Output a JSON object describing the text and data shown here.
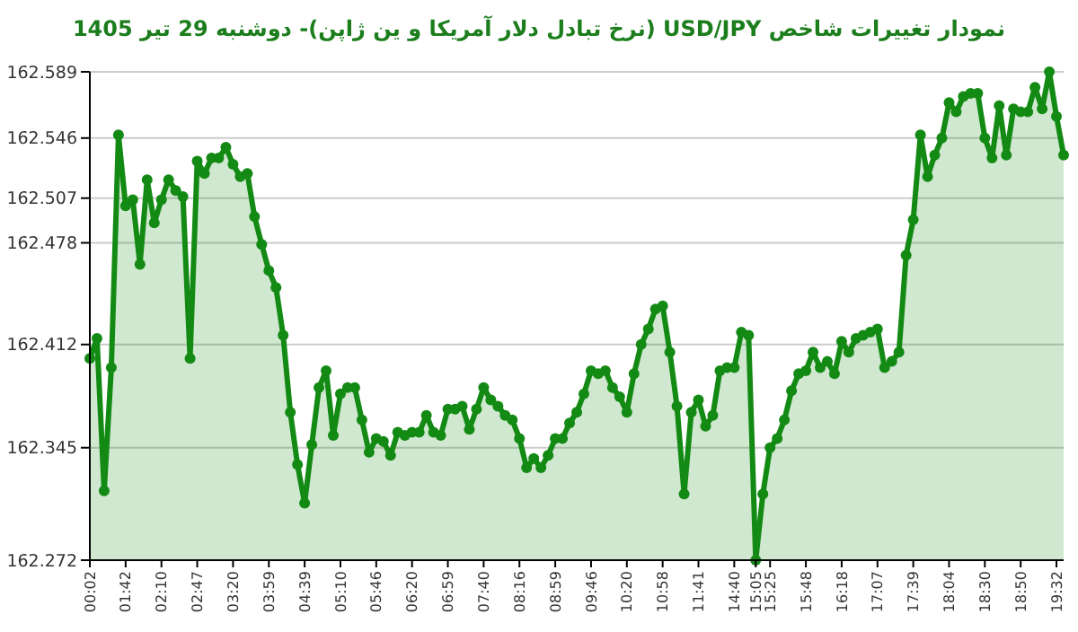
{
  "chart_data": {
    "type": "area",
    "title": "نمودار تغییرات شاخص USD/JPY (نرخ تبادل دلار آمریکا و ین ژاپن)-  دوشنبه  29 تیر 1405",
    "categories": [
      "00:02",
      null,
      null,
      null,
      null,
      "01:42",
      null,
      null,
      null,
      null,
      "02:10",
      null,
      null,
      null,
      null,
      "02:47",
      null,
      null,
      null,
      null,
      "03:20",
      null,
      null,
      null,
      null,
      "03:59",
      null,
      null,
      null,
      null,
      "04:39",
      null,
      null,
      null,
      null,
      "05:10",
      null,
      null,
      null,
      null,
      "05:46",
      null,
      null,
      null,
      null,
      "06:20",
      null,
      null,
      null,
      null,
      "06:59",
      null,
      null,
      null,
      null,
      "07:40",
      null,
      null,
      null,
      null,
      "08:16",
      null,
      null,
      null,
      null,
      "08:59",
      null,
      null,
      null,
      null,
      "09:46",
      null,
      null,
      null,
      null,
      "10:20",
      null,
      null,
      null,
      null,
      "10:58",
      null,
      null,
      null,
      null,
      "11:41",
      null,
      null,
      null,
      null,
      "14:40",
      null,
      null,
      "15:05",
      null,
      "15:25",
      null,
      null,
      null,
      null,
      "15:48",
      null,
      null,
      null,
      null,
      "16:18",
      null,
      null,
      null,
      null,
      "17:07",
      null,
      null,
      null,
      null,
      "17:39",
      null,
      null,
      null,
      null,
      "18:04",
      null,
      null,
      null,
      null,
      "18:30",
      null,
      null,
      null,
      null,
      "18:50",
      null,
      null,
      null,
      null,
      "19:32",
      null
    ],
    "series": [
      {
        "color": "#138a13",
        "values": [
          162.403,
          162.416,
          162.317,
          162.397,
          162.548,
          162.502,
          162.506,
          162.464,
          162.519,
          162.491,
          162.506,
          162.519,
          162.512,
          162.508,
          162.403,
          162.531,
          162.523,
          162.533,
          162.533,
          162.54,
          162.529,
          162.521,
          162.523,
          162.495,
          162.477,
          162.46,
          162.449,
          162.418,
          162.368,
          162.334,
          162.309,
          162.347,
          162.384,
          162.395,
          162.353,
          162.38,
          162.384,
          162.384,
          162.363,
          162.342,
          162.351,
          162.349,
          162.34,
          162.355,
          162.353,
          162.355,
          162.355,
          162.366,
          162.355,
          162.353,
          162.37,
          162.37,
          162.372,
          162.357,
          162.37,
          162.384,
          162.376,
          162.372,
          162.366,
          162.363,
          162.351,
          162.332,
          162.338,
          162.332,
          162.34,
          162.351,
          162.351,
          162.361,
          162.368,
          162.38,
          162.395,
          162.393,
          162.395,
          162.384,
          162.378,
          162.368,
          162.393,
          162.412,
          162.422,
          162.435,
          162.437,
          162.407,
          162.372,
          162.315,
          162.368,
          162.376,
          162.359,
          162.366,
          162.395,
          162.397,
          162.397,
          162.42,
          162.418,
          162.272,
          162.315,
          162.345,
          162.351,
          162.363,
          162.382,
          162.393,
          162.395,
          162.407,
          162.397,
          162.401,
          162.393,
          162.414,
          162.407,
          162.416,
          162.418,
          162.42,
          162.422,
          162.397,
          162.401,
          162.407,
          162.47,
          162.493,
          162.548,
          162.521,
          162.535,
          162.546,
          162.569,
          162.563,
          162.573,
          162.575,
          162.575,
          162.546,
          162.533,
          162.567,
          162.535,
          162.565,
          162.563,
          162.563,
          162.579,
          162.565,
          162.589,
          162.56,
          162.535
        ]
      }
    ],
    "ylim": [
      162.272,
      162.589
    ],
    "yticks": [
      162.272,
      162.345,
      162.412,
      162.478,
      162.507,
      162.546,
      162.589
    ],
    "grid": "y",
    "marker": "circle"
  }
}
